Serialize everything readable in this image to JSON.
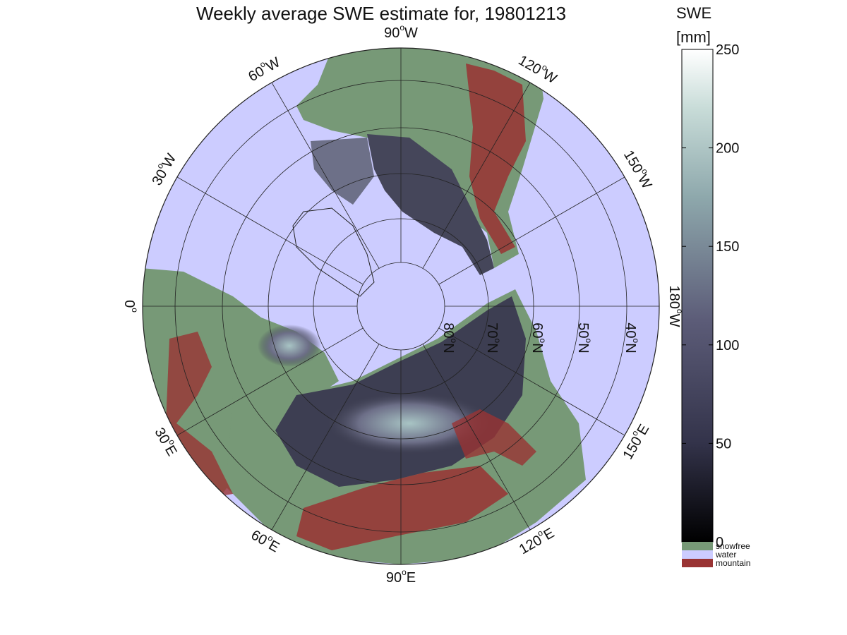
{
  "title": "Weekly average SWE estimate for, 19801213",
  "map": {
    "projection": "north-polar-stereographic",
    "longitude_labels": [
      {
        "value": "90",
        "dir": "W"
      },
      {
        "value": "60",
        "dir": "W"
      },
      {
        "value": "120",
        "dir": "W"
      },
      {
        "value": "30",
        "dir": "W"
      },
      {
        "value": "150",
        "dir": "W"
      },
      {
        "value": "0",
        "dir": ""
      },
      {
        "value": "180",
        "dir": "W"
      },
      {
        "value": "30",
        "dir": "E"
      },
      {
        "value": "150",
        "dir": "E"
      },
      {
        "value": "60",
        "dir": "E"
      },
      {
        "value": "120",
        "dir": "E"
      },
      {
        "value": "90",
        "dir": "E"
      }
    ],
    "latitude_labels": [
      {
        "value": "80",
        "dir": "N"
      },
      {
        "value": "70",
        "dir": "N"
      },
      {
        "value": "60",
        "dir": "N"
      },
      {
        "value": "50",
        "dir": "N"
      },
      {
        "value": "40",
        "dir": "N"
      }
    ],
    "colors": {
      "water": "#ccccff",
      "snowfree": "#779977",
      "mountain": "#993333",
      "snow_low": "#2a2a3a",
      "snow_high": "#aac8c8"
    }
  },
  "colorbar": {
    "label_line1": "SWE",
    "label_line2": "[mm]",
    "ticks": [
      "0",
      "50",
      "100",
      "150",
      "200",
      "250"
    ],
    "range": [
      0,
      250
    ],
    "legend": [
      {
        "label": "snowfree",
        "color": "#779977"
      },
      {
        "label": "water",
        "color": "#ccccff"
      },
      {
        "label": "mountain",
        "color": "#993333"
      }
    ]
  }
}
